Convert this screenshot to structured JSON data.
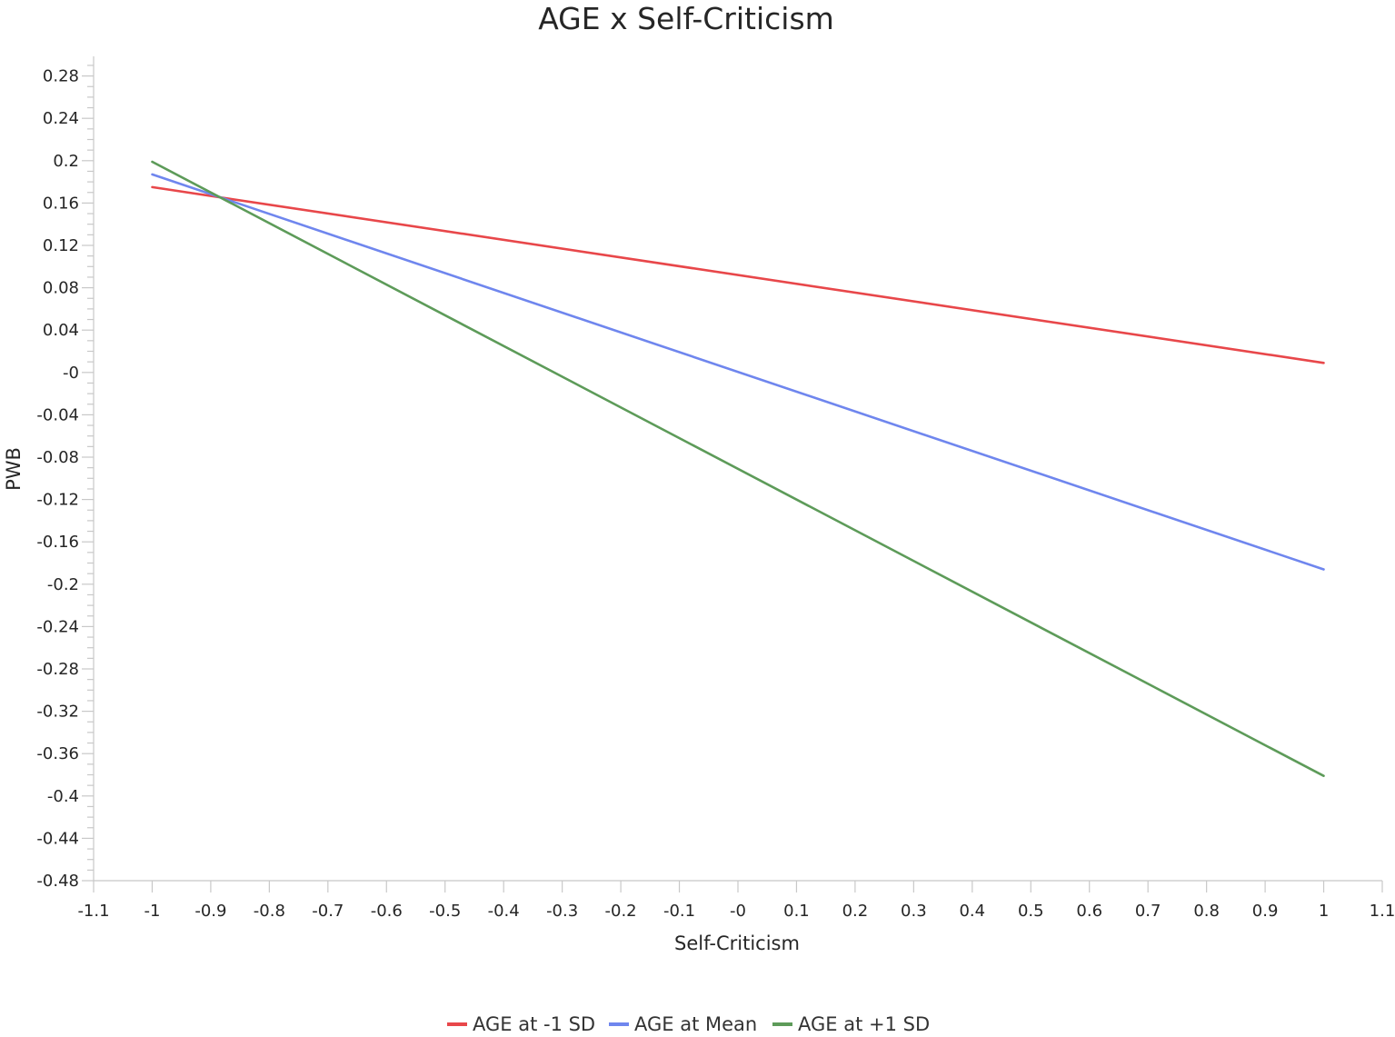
{
  "chart_data": {
    "type": "line",
    "title": "AGE x Self-Criticism",
    "xlabel": "Self-Criticism",
    "ylabel": "PWB",
    "xlim": [
      -1.1,
      1.1
    ],
    "ylim": [
      -0.48,
      0.3
    ],
    "x_ticks": [
      -1.1,
      -1,
      -0.9,
      -0.8,
      -0.7,
      -0.6,
      -0.5,
      -0.4,
      -0.3,
      -0.2,
      -0.1,
      0,
      0.1,
      0.2,
      0.3,
      0.4,
      0.5,
      0.6,
      0.7,
      0.8,
      0.9,
      1,
      1.1
    ],
    "x_tick_labels": [
      "-1.1",
      "-1",
      "-0.9",
      "-0.8",
      "-0.7",
      "-0.6",
      "-0.5",
      "-0.4",
      "-0.3",
      "-0.2",
      "-0.1",
      "-0",
      "0.1",
      "0.2",
      "0.3",
      "0.4",
      "0.5",
      "0.6",
      "0.7",
      "0.8",
      "0.9",
      "1",
      "1.1"
    ],
    "y_ticks": [
      0.28,
      0.24,
      0.2,
      0.16,
      0.12,
      0.08,
      0.04,
      0,
      -0.04,
      -0.08,
      -0.12,
      -0.16,
      -0.2,
      -0.24,
      -0.28,
      -0.32,
      -0.36,
      -0.4,
      -0.44,
      -0.48
    ],
    "y_tick_labels": [
      "0.28",
      "0.24",
      "0.2",
      "0.16",
      "0.12",
      "0.08",
      "0.04",
      "-0",
      "-0.04",
      "-0.08",
      "-0.12",
      "-0.16",
      "-0.2",
      "-0.24",
      "-0.28",
      "-0.32",
      "-0.36",
      "-0.4",
      "-0.44",
      "-0.48"
    ],
    "grid": false,
    "legend_position": "bottom",
    "series": [
      {
        "name": "AGE at -1 SD",
        "color": "#e8474a",
        "x": [
          -1,
          1
        ],
        "y": [
          0.175,
          0.009
        ]
      },
      {
        "name": "AGE at Mean",
        "color": "#6f86ee",
        "x": [
          -1,
          1
        ],
        "y": [
          0.187,
          -0.186
        ]
      },
      {
        "name": "AGE at +1 SD",
        "color": "#5d9b59",
        "x": [
          -1,
          1
        ],
        "y": [
          0.199,
          -0.381
        ]
      }
    ]
  }
}
